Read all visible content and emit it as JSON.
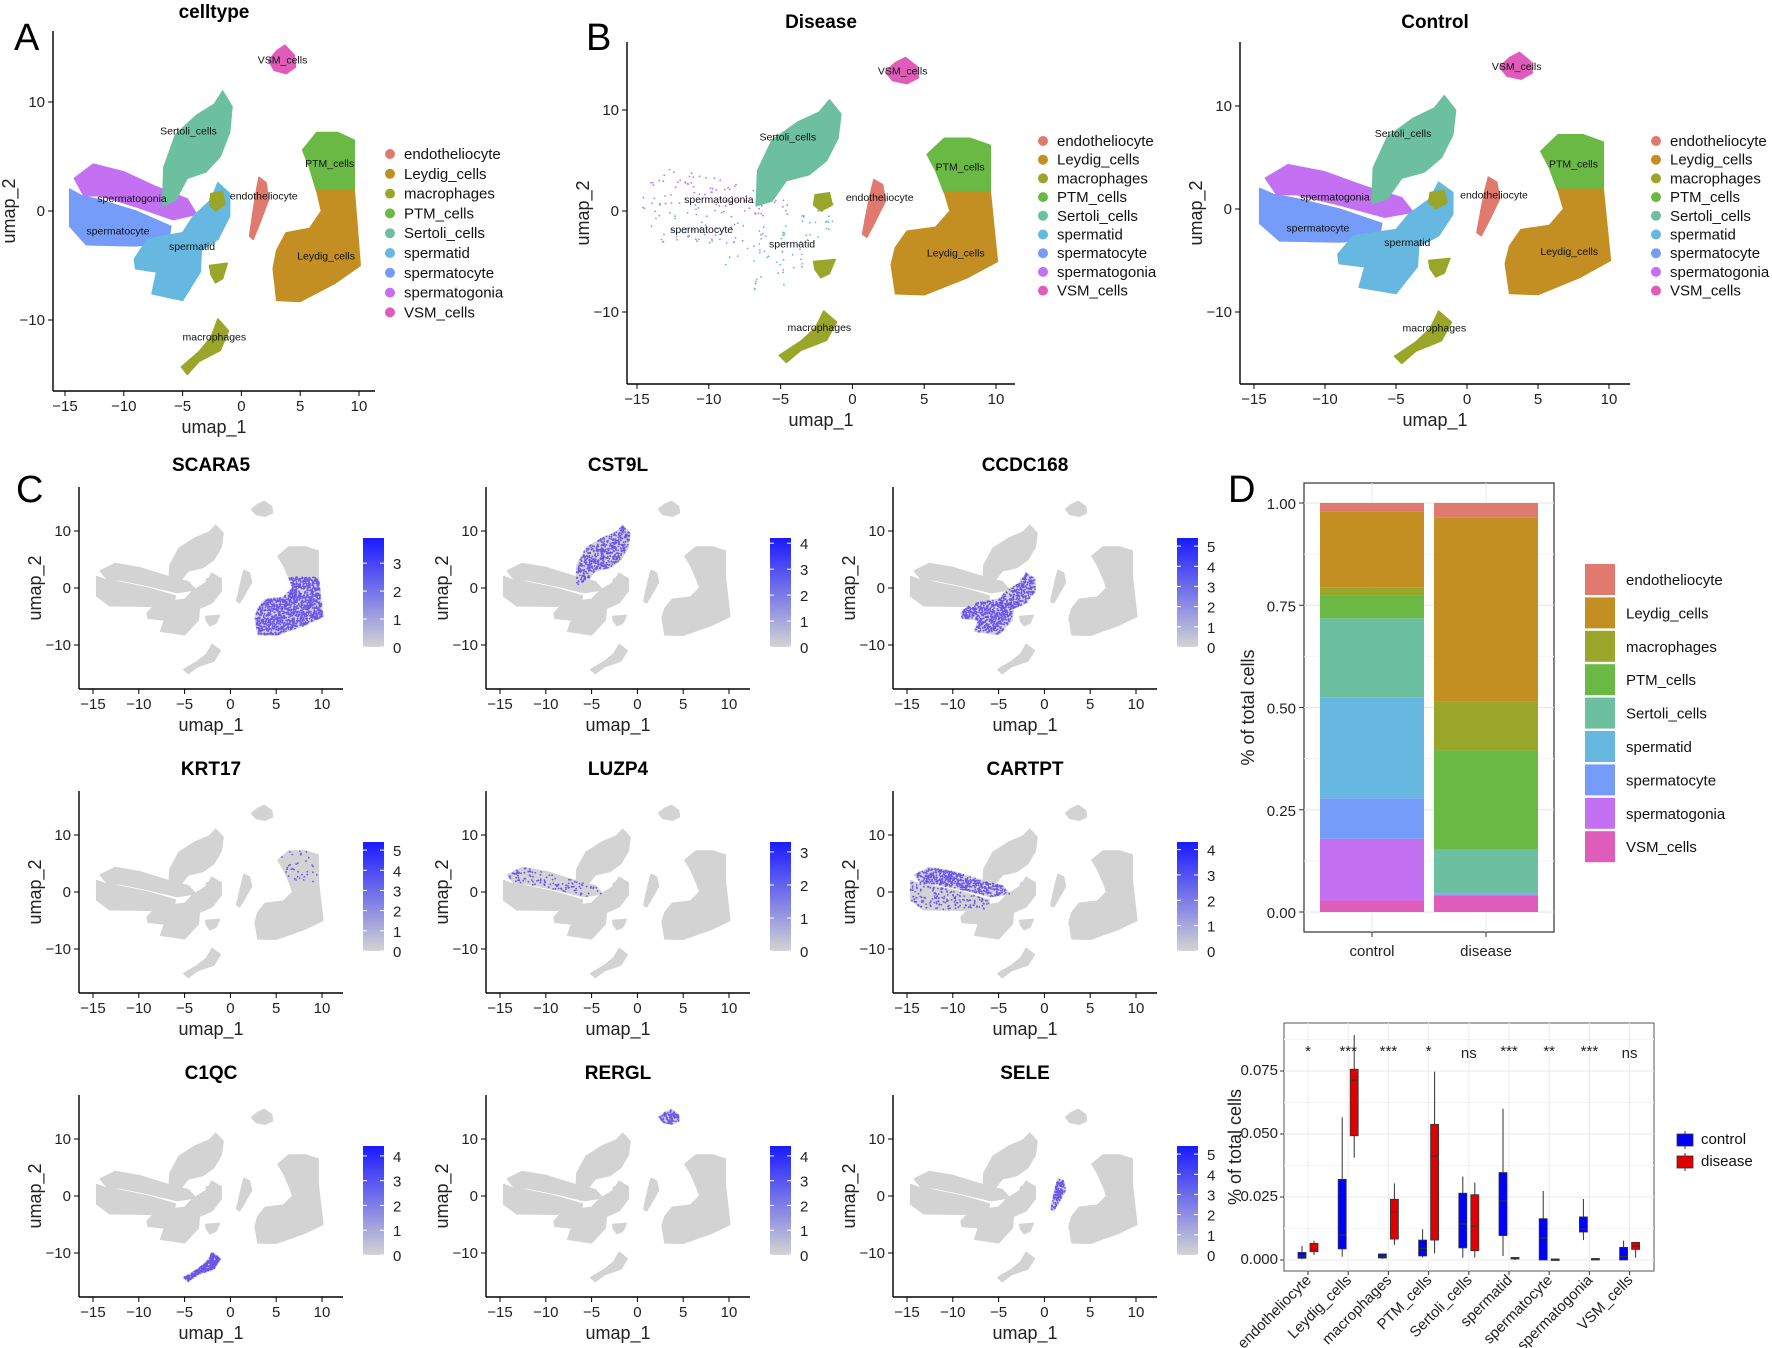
{
  "panel_labels": [
    "A",
    "B",
    "C",
    "D"
  ],
  "celltypes": [
    {
      "name": "endotheliocyte",
      "color": "#E07A6F"
    },
    {
      "name": "Leydig_cells",
      "color": "#C38F22"
    },
    {
      "name": "macrophages",
      "color": "#9AA62A"
    },
    {
      "name": "PTM_cells",
      "color": "#6BB945"
    },
    {
      "name": "Sertoli_cells",
      "color": "#6CC09F"
    },
    {
      "name": "spermatid",
      "color": "#66B8E0"
    },
    {
      "name": "spermatocyte",
      "color": "#759CF9"
    },
    {
      "name": "spermatogonia",
      "color": "#C370F2"
    },
    {
      "name": "VSM_cells",
      "color": "#E05CBB"
    }
  ],
  "chart_data": [
    {
      "id": "A",
      "type": "scatter",
      "title": "celltype",
      "xlabel": "umap_1",
      "ylabel": "umap_2",
      "xticks": [
        -15,
        -10,
        -5,
        0,
        5,
        10
      ],
      "yticks": [
        -10,
        0,
        10
      ],
      "legend": "right",
      "cluster_labels": true
    },
    {
      "id": "B-disease",
      "type": "scatter",
      "title": "Disease",
      "xlabel": "umap_1",
      "ylabel": "umap_2",
      "xticks": [
        -15,
        -10,
        -5,
        0,
        5,
        10
      ],
      "yticks": [
        -10,
        0,
        10
      ],
      "legend": "right",
      "cluster_labels": true
    },
    {
      "id": "B-control",
      "type": "scatter",
      "title": "Control",
      "xlabel": "umap_1",
      "ylabel": "umap_2",
      "xticks": [
        -15,
        -10,
        -5,
        0,
        5,
        10
      ],
      "yticks": [
        -10,
        0,
        10
      ],
      "legend": "right",
      "cluster_labels": true
    },
    {
      "id": "C",
      "type": "scatter",
      "subtype": "feature_plots",
      "xlabel": "umap_1",
      "ylabel": "umap_2",
      "xticks": [
        -15,
        -10,
        -5,
        0,
        5,
        10
      ],
      "yticks": [
        -10,
        0,
        10
      ],
      "low_color": "#D3D3D3",
      "high_color": "#1A1AFF",
      "genes": [
        {
          "name": "SCARA5",
          "ticks": [
            0,
            1,
            2,
            3
          ],
          "scale_max": 3.9,
          "expressed": [
            {
              "cluster": "Leydig_cells",
              "density": 0.9
            }
          ]
        },
        {
          "name": "CST9L",
          "ticks": [
            0,
            1,
            2,
            3,
            4
          ],
          "scale_max": 4.2,
          "expressed": [
            {
              "cluster": "Sertoli_cells",
              "density": 0.45
            }
          ]
        },
        {
          "name": "CCDC168",
          "ticks": [
            0,
            1,
            2,
            3,
            4,
            5
          ],
          "scale_max": 5.4,
          "expressed": [
            {
              "cluster": "spermatid",
              "density": 0.5
            }
          ]
        },
        {
          "name": "KRT17",
          "ticks": [
            0,
            1,
            2,
            3,
            4,
            5
          ],
          "scale_max": 5.4,
          "expressed": [
            {
              "cluster": "PTM_cells",
              "density": 0.08
            }
          ]
        },
        {
          "name": "LUZP4",
          "ticks": [
            0,
            1,
            2,
            3
          ],
          "scale_max": 3.3,
          "expressed": [
            {
              "cluster": "spermatogonia",
              "density": 0.12
            }
          ]
        },
        {
          "name": "CARTPT",
          "ticks": [
            0,
            1,
            2,
            3,
            4
          ],
          "scale_max": 4.3,
          "expressed": [
            {
              "cluster": "spermatogonia",
              "density": 0.5
            },
            {
              "cluster": "spermatocyte",
              "density": 0.2
            }
          ]
        },
        {
          "name": "C1QC",
          "ticks": [
            0,
            1,
            2,
            3,
            4
          ],
          "scale_max": 4.4,
          "expressed": [
            {
              "cluster": "macrophages",
              "density": 0.9
            }
          ]
        },
        {
          "name": "RERGL",
          "ticks": [
            0,
            1,
            2,
            3,
            4
          ],
          "scale_max": 4.4,
          "expressed": [
            {
              "cluster": "VSM_cells",
              "density": 0.9
            }
          ]
        },
        {
          "name": "SELE",
          "ticks": [
            0,
            1,
            2,
            3,
            4,
            5
          ],
          "scale_max": 5.4,
          "expressed": [
            {
              "cluster": "endotheliocyte",
              "density": 0.8
            }
          ]
        }
      ]
    },
    {
      "id": "D-stacked",
      "type": "bar",
      "stacked": true,
      "categories": [
        "control",
        "disease"
      ],
      "ylabel": "% of total cells",
      "yticks": [
        "0.00",
        "0.25",
        "0.50",
        "0.75",
        "1.00"
      ],
      "ylim": [
        0,
        1
      ],
      "series": [
        {
          "name": "VSM_cells",
          "values": [
            0.028,
            0.04
          ]
        },
        {
          "name": "spermatogonia",
          "values": [
            0.151,
            0.002
          ]
        },
        {
          "name": "spermatocyte",
          "values": [
            0.099,
            0.002
          ]
        },
        {
          "name": "spermatid",
          "values": [
            0.247,
            0.002
          ]
        },
        {
          "name": "Sertoli_cells",
          "values": [
            0.193,
            0.108
          ]
        },
        {
          "name": "PTM_cells",
          "values": [
            0.056,
            0.241
          ]
        },
        {
          "name": "macrophages",
          "values": [
            0.019,
            0.12
          ]
        },
        {
          "name": "Leydig_cells",
          "values": [
            0.187,
            0.45
          ]
        },
        {
          "name": "endotheliocyte",
          "values": [
            0.02,
            0.035
          ]
        }
      ],
      "legend": "right"
    },
    {
      "id": "D-box",
      "type": "box",
      "ylabel": "% of total cells",
      "yticks": [
        "0.000",
        "0.025",
        "0.050",
        "0.075"
      ],
      "ylim": [
        -0.004,
        0.092
      ],
      "groups": [
        {
          "name": "control",
          "color": "#0000FF"
        },
        {
          "name": "disease",
          "color": "#E00000"
        }
      ],
      "categories": [
        {
          "name": "endotheliocyte",
          "sig": "*",
          "control": [
            0.0003,
            0.0007,
            0.0016,
            0.003,
            0.0056
          ],
          "disease": [
            0.002,
            0.0033,
            0.0042,
            0.0066,
            0.0077
          ]
        },
        {
          "name": "Leydig_cells",
          "sig": "***",
          "control": [
            0.0013,
            0.0044,
            0.0099,
            0.032,
            0.0566
          ],
          "disease": [
            0.0406,
            0.0493,
            0.0714,
            0.0757,
            0.0893
          ]
        },
        {
          "name": "macrophages",
          "sig": "***",
          "control": [
            0.0005,
            0.0008,
            0.0015,
            0.0024,
            0.0026
          ],
          "disease": [
            0.006,
            0.0083,
            0.0192,
            0.0241,
            0.0304
          ]
        },
        {
          "name": "PTM_cells",
          "sig": "*",
          "control": [
            0.001,
            0.0016,
            0.0046,
            0.0079,
            0.0122
          ],
          "disease": [
            0.0026,
            0.0079,
            0.0413,
            0.0538,
            0.0747
          ]
        },
        {
          "name": "Sertoli_cells",
          "sig": "ns",
          "control": [
            0.0009,
            0.0048,
            0.0143,
            0.0265,
            0.0331
          ],
          "disease": [
            0.001,
            0.0037,
            0.0135,
            0.0259,
            0.0307
          ]
        },
        {
          "name": "spermatid",
          "sig": "***",
          "control": [
            0.0016,
            0.0097,
            0.0234,
            0.0347,
            0.06
          ],
          "disease": [
            0.0,
            0.0004,
            0.0007,
            0.001,
            0.0012
          ]
        },
        {
          "name": "spermatocyte",
          "sig": "**",
          "control": [
            0.0,
            0.0,
            0.0087,
            0.0164,
            0.0274
          ],
          "disease": [
            0.0,
            0.0,
            0.0002,
            0.0004,
            0.0005
          ]
        },
        {
          "name": "spermatogonia",
          "sig": "***",
          "control": [
            0.0079,
            0.0111,
            0.0122,
            0.0171,
            0.0242
          ],
          "disease": [
            0.0,
            0.0002,
            0.0004,
            0.0006,
            0.0007
          ]
        },
        {
          "name": "VSM_cells",
          "sig": "ns",
          "control": [
            0.0,
            0.0,
            0.0013,
            0.005,
            0.0077
          ],
          "disease": [
            0.0009,
            0.0042,
            0.0056,
            0.007,
            0.007
          ]
        }
      ],
      "legend": "right"
    }
  ],
  "umap_clusters": {
    "VSM_cells": {
      "label_at": [
        3.5,
        13.9
      ],
      "poly": [
        [
          2.3,
          13.8
        ],
        [
          3,
          14.7
        ],
        [
          3.7,
          15.2
        ],
        [
          4.5,
          14.3
        ],
        [
          4.6,
          13.2
        ],
        [
          3.8,
          12.6
        ],
        [
          2.8,
          12.9
        ]
      ]
    },
    "Sertoli_cells": {
      "label_at": [
        -4.5,
        7.4
      ],
      "poly": [
        [
          -6.7,
          0.5
        ],
        [
          -6.6,
          4
        ],
        [
          -5.6,
          7
        ],
        [
          -3.8,
          8.8
        ],
        [
          -2.3,
          9.8
        ],
        [
          -1.6,
          11
        ],
        [
          -0.8,
          9.6
        ],
        [
          -1,
          7.2
        ],
        [
          -1.8,
          5
        ],
        [
          -3,
          3.6
        ],
        [
          -4.6,
          3
        ],
        [
          -5.6,
          1
        ]
      ]
    },
    "spermatogonia": {
      "label_at": [
        -9.3,
        1.2
      ],
      "poly": [
        [
          -14.2,
          3
        ],
        [
          -12.6,
          4.3
        ],
        [
          -10,
          3.6
        ],
        [
          -7.2,
          2.2
        ],
        [
          -4.6,
          1.1
        ],
        [
          -3.8,
          -0.3
        ],
        [
          -5.8,
          -0.8
        ],
        [
          -9,
          0.4
        ],
        [
          -12,
          1.4
        ],
        [
          -13.4,
          1.4
        ]
      ]
    },
    "spermatocyte": {
      "label_at": [
        -10.5,
        -1.8
      ],
      "poly": [
        [
          -14.6,
          2
        ],
        [
          -14.6,
          -1.4
        ],
        [
          -13.2,
          -3.1
        ],
        [
          -9,
          -3.2
        ],
        [
          -6.2,
          -2.9
        ],
        [
          -6,
          -1.4
        ],
        [
          -9,
          0
        ],
        [
          -12,
          1
        ],
        [
          -13.6,
          1.4
        ]
      ]
    },
    "spermatid": {
      "label_at": [
        -4.2,
        -3.2
      ],
      "poly": [
        [
          -9.1,
          -4.4
        ],
        [
          -8,
          -2.6
        ],
        [
          -5,
          -2
        ],
        [
          -4.1,
          -0.5
        ],
        [
          -2.6,
          1
        ],
        [
          -2,
          2.6
        ],
        [
          -1,
          1.6
        ],
        [
          -1,
          -0.5
        ],
        [
          -2,
          -2.6
        ],
        [
          -3.4,
          -3.6
        ],
        [
          -3.5,
          -5.6
        ],
        [
          -5,
          -8.2
        ],
        [
          -7.6,
          -7.6
        ],
        [
          -7.2,
          -5.6
        ],
        [
          -9,
          -5.3
        ]
      ]
    },
    "endotheliocyte": {
      "label_at": [
        1.9,
        1.4
      ],
      "poly": [
        [
          1.5,
          3.1
        ],
        [
          2.1,
          2.6
        ],
        [
          2.3,
          1
        ],
        [
          1.6,
          -1
        ],
        [
          1,
          -2.6
        ],
        [
          0.7,
          -2.3
        ],
        [
          1,
          0
        ],
        [
          1.3,
          2
        ]
      ]
    },
    "PTM_cells": {
      "label_at": [
        7.5,
        4.4
      ],
      "poly": [
        [
          5.2,
          5.6
        ],
        [
          6.4,
          7.2
        ],
        [
          8.2,
          7.2
        ],
        [
          9.6,
          6.5
        ],
        [
          9.6,
          1.8
        ],
        [
          6.4,
          1.8
        ],
        [
          5.8,
          4
        ]
      ]
    },
    "Leydig_cells": {
      "label_at": [
        7.2,
        -4.1
      ],
      "poly": [
        [
          6.4,
          1.9
        ],
        [
          9.6,
          1.9
        ],
        [
          10.1,
          -5
        ],
        [
          8,
          -6.6
        ],
        [
          5,
          -8.3
        ],
        [
          3,
          -8.2
        ],
        [
          2.7,
          -5.3
        ],
        [
          3,
          -3.6
        ],
        [
          3.8,
          -2
        ],
        [
          5.8,
          -1.6
        ],
        [
          6.8,
          0
        ]
      ]
    },
    "macrophages": {
      "label_at": [
        -2.3,
        -11.5
      ],
      "poly": [
        [
          -2,
          -9.9
        ],
        [
          -1.1,
          -11
        ],
        [
          -1.8,
          -12.8
        ],
        [
          -3.6,
          -13.8
        ],
        [
          -4.6,
          -15
        ],
        [
          -5.1,
          -14.3
        ],
        [
          -3.6,
          -12.9
        ],
        [
          -2.6,
          -11.6
        ],
        [
          -2.2,
          -10.5
        ]
      ]
    },
    "macrophages_small": {
      "poly": [
        [
          -2.6,
          1.6
        ],
        [
          -1.6,
          1.8
        ],
        [
          -1.4,
          0.6
        ],
        [
          -2.2,
          0
        ],
        [
          -2.7,
          0.6
        ]
      ]
    },
    "macrophages_small2": {
      "poly": [
        [
          -2.7,
          -5
        ],
        [
          -1.2,
          -4.8
        ],
        [
          -1.6,
          -6.2
        ],
        [
          -2.2,
          -6.6
        ],
        [
          -2.6,
          -5.8
        ]
      ]
    }
  }
}
